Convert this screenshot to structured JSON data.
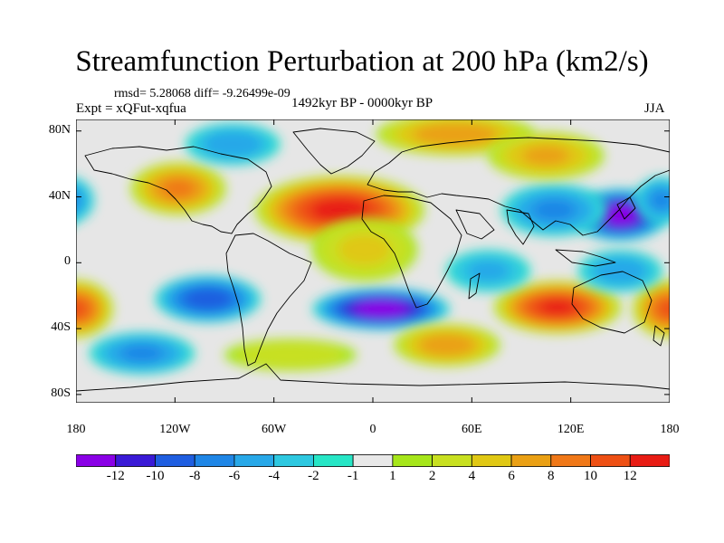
{
  "title": "Streamfunction Perturbation at 200 hPa (km2/s)",
  "stats": "rmsd= 5.28068 diff= -9.26499e-09",
  "experiment": "Expt = xQFut-xqfua",
  "period": "1492kyr BP - 0000kyr BP",
  "season": "JJA",
  "map": {
    "y_ticks": [
      {
        "label": "80N",
        "value": 80
      },
      {
        "label": "40N",
        "value": 40
      },
      {
        "label": "0",
        "value": 0
      },
      {
        "label": "40S",
        "value": -40
      },
      {
        "label": "80S",
        "value": -80
      }
    ],
    "x_ticks": [
      {
        "label": "180",
        "value": -180
      },
      {
        "label": "120W",
        "value": -120
      },
      {
        "label": "60W",
        "value": -60
      },
      {
        "label": "0",
        "value": 0
      },
      {
        "label": "60E",
        "value": 60
      },
      {
        "label": "120E",
        "value": 120
      },
      {
        "label": "180",
        "value": 180
      }
    ],
    "lon_range": [
      -180,
      180
    ],
    "lat_range": [
      -85,
      87
    ],
    "background_color": "#e6e6e6",
    "anomalies": [
      {
        "name": "north-atlantic-high",
        "lon": -20,
        "lat": 32,
        "value": 12.5,
        "rx": 32,
        "ry": 13
      },
      {
        "name": "north-pacific-low",
        "lon": 150,
        "lat": 29,
        "value": -13,
        "rx": 18,
        "ry": 10
      },
      {
        "name": "west-pacific-low-extension",
        "lon": 110,
        "lat": 32,
        "value": -6,
        "rx": 20,
        "ry": 10
      },
      {
        "name": "east-pacific-high",
        "lon": -180,
        "lat": -28,
        "value": 10,
        "rx": 14,
        "ry": 11
      },
      {
        "name": "south-atlantic-low",
        "lon": 5,
        "lat": -28,
        "value": -13,
        "rx": 26,
        "ry": 8
      },
      {
        "name": "south-pacific-low",
        "lon": -100,
        "lat": -22,
        "value": -9,
        "rx": 20,
        "ry": 9
      },
      {
        "name": "australia-high",
        "lon": 112,
        "lat": -27,
        "value": 12,
        "rx": 24,
        "ry": 10
      },
      {
        "name": "indian-ocean-high",
        "lon": 45,
        "lat": -50,
        "value": 7,
        "rx": 20,
        "ry": 8
      },
      {
        "name": "arctic-positive",
        "lon": 50,
        "lat": 78,
        "value": 7,
        "rx": 30,
        "ry": 8
      },
      {
        "name": "siberia-positive",
        "lon": 105,
        "lat": 65,
        "value": 6,
        "rx": 22,
        "ry": 9
      },
      {
        "name": "north-america-high",
        "lon": -118,
        "lat": 45,
        "value": 8,
        "rx": 18,
        "ry": 10
      },
      {
        "name": "greenland-negative",
        "lon": -85,
        "lat": 72,
        "value": -5,
        "rx": 18,
        "ry": 8
      },
      {
        "name": "dateline-negative",
        "lon": 175,
        "lat": 38,
        "value": -6,
        "rx": 10,
        "ry": 9
      },
      {
        "name": "africa-mid-positive",
        "lon": -5,
        "lat": 8,
        "value": 4,
        "rx": 20,
        "ry": 12
      },
      {
        "name": "southern-ocean-negative",
        "lon": -140,
        "lat": -55,
        "value": -6,
        "rx": 20,
        "ry": 8
      },
      {
        "name": "south-pacific-gyre-negative",
        "lon": 150,
        "lat": -5,
        "value": -5,
        "rx": 16,
        "ry": 8
      },
      {
        "name": "south-america-positive",
        "lon": -50,
        "lat": -56,
        "value": 3,
        "rx": 25,
        "ry": 6
      },
      {
        "name": "indian-negative",
        "lon": 70,
        "lat": -5,
        "value": -4,
        "rx": 16,
        "ry": 8
      }
    ]
  },
  "colorbar": {
    "colors": [
      "#8a00e6",
      "#3a1ad6",
      "#1f5ee0",
      "#1f86e6",
      "#28a8e8",
      "#2ec8e0",
      "#27e6c6",
      "#e8e8e8",
      "#a6e61a",
      "#c8e020",
      "#e0c814",
      "#eaa014",
      "#f07818",
      "#ee5014",
      "#e81c14"
    ],
    "labels": [
      {
        "text": "-12",
        "boundary_index": 1
      },
      {
        "text": "-10",
        "boundary_index": 2
      },
      {
        "text": "-8",
        "boundary_index": 3
      },
      {
        "text": "-6",
        "boundary_index": 4
      },
      {
        "text": "-4",
        "boundary_index": 5
      },
      {
        "text": "-2",
        "boundary_index": 6
      },
      {
        "text": "-1",
        "boundary_index": 7
      },
      {
        "text": "1",
        "boundary_index": 8
      },
      {
        "text": "2",
        "boundary_index": 9
      },
      {
        "text": "4",
        "boundary_index": 10
      },
      {
        "text": "6",
        "boundary_index": 11
      },
      {
        "text": "8",
        "boundary_index": 12
      },
      {
        "text": "10",
        "boundary_index": 13
      },
      {
        "text": "12",
        "boundary_index": 14
      }
    ],
    "levels": [
      -13,
      -12,
      -10,
      -8,
      -6,
      -4,
      -2,
      -1,
      1,
      2,
      4,
      6,
      8,
      10,
      12,
      14
    ]
  }
}
